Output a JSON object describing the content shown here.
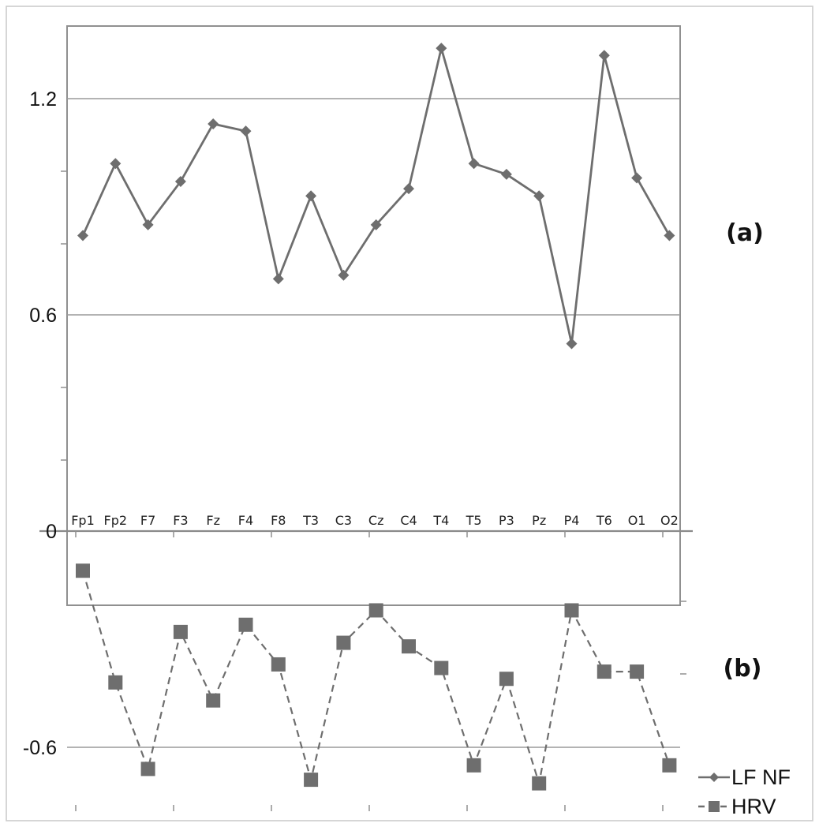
{
  "chart_data": {
    "type": "line",
    "categories": [
      "Fp1",
      "Fp2",
      "F7",
      "F3",
      "Fz",
      "F4",
      "F8",
      "T3",
      "C3",
      "Cz",
      "C4",
      "T4",
      "T5",
      "P3",
      "Pz",
      "P4",
      "T6",
      "O1",
      "O2"
    ],
    "series": [
      {
        "name": "LF NF",
        "values": [
          0.82,
          1.02,
          0.85,
          0.97,
          1.13,
          1.11,
          0.7,
          0.93,
          0.71,
          0.85,
          0.95,
          1.34,
          1.02,
          0.99,
          0.93,
          0.52,
          1.32,
          0.98,
          0.82
        ],
        "color": "#6e6e6e",
        "line_style": "solid",
        "marker": "diamond"
      },
      {
        "name": "HRV",
        "values": [
          -0.11,
          -0.42,
          -0.66,
          -0.28,
          -0.47,
          -0.26,
          -0.37,
          -0.69,
          -0.31,
          -0.22,
          -0.32,
          -0.38,
          -0.65,
          -0.41,
          -0.7,
          -0.22,
          -0.39,
          -0.39,
          -0.65
        ],
        "color": "#6e6e6e",
        "line_style": "dashed",
        "marker": "square"
      }
    ],
    "yticks": [
      {
        "value": 1.2,
        "label": "1.2"
      },
      {
        "value": 0.6,
        "label": "0.6"
      },
      {
        "value": 0,
        "label": "0"
      },
      {
        "value": -0.6,
        "label": "-0.6"
      }
    ],
    "ylim": [
      -0.8,
      1.4
    ],
    "grid": true,
    "panel_labels": [
      "(a)",
      "(b)"
    ],
    "legend": {
      "position": "bottom-right",
      "entries": [
        "LF NF",
        "HRV"
      ]
    }
  }
}
